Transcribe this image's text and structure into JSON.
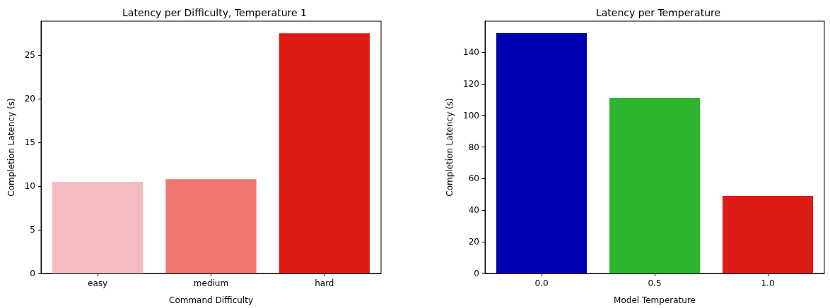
{
  "chart_data": [
    {
      "type": "bar",
      "title": "Latency per Difficulty, Temperature 1",
      "xlabel": "Command Difficulty",
      "ylabel": "Completion Latency (s)",
      "categories": [
        "easy",
        "medium",
        "hard"
      ],
      "values": [
        10.5,
        10.8,
        27.5
      ],
      "colors": [
        "#f4bcc1",
        "#f07672",
        "#dd1c15"
      ],
      "ylim": [
        0,
        28.9
      ],
      "yticks": [
        0,
        5,
        10,
        15,
        20,
        25
      ],
      "grid": false
    },
    {
      "type": "bar",
      "title": "Latency per Temperature",
      "xlabel": "Model Temperature",
      "ylabel": "Completion Latency (s)",
      "categories": [
        "0.0",
        "0.5",
        "1.0"
      ],
      "values": [
        152,
        111,
        49
      ],
      "colors": [
        "#0000b3",
        "#2db52f",
        "#dd1c15"
      ],
      "ylim": [
        0,
        159.6
      ],
      "yticks": [
        0,
        20,
        40,
        60,
        80,
        100,
        120,
        140
      ],
      "grid": false
    }
  ]
}
